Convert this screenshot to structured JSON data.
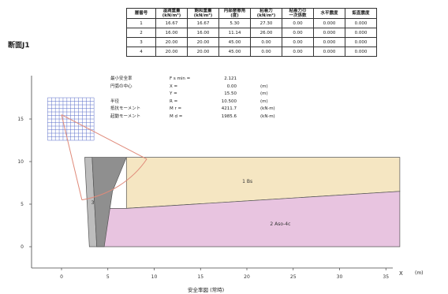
{
  "section_label": "断面J1",
  "table": {
    "headers": [
      "層番号",
      "湿潤重量\n(kN/m³)",
      "飽和重量\n(kN/m³)",
      "内部摩擦角\n(度)",
      "粘着力\n(kN/m²)",
      "粘着力の\n一次係数",
      "水平震度",
      "鉛直震度"
    ],
    "rows": [
      [
        "1",
        "16.67",
        "16.67",
        "5.30",
        "27.30",
        "0.00",
        "0.000",
        "0.000"
      ],
      [
        "2",
        "16.00",
        "16.00",
        "11.14",
        "26.00",
        "0.00",
        "0.000",
        "0.000"
      ],
      [
        "3",
        "20.00",
        "20.00",
        "45.00",
        "0.00",
        "0.00",
        "0.000",
        "0.000"
      ],
      [
        "4",
        "20.00",
        "20.00",
        "45.00",
        "0.00",
        "0.00",
        "0.000",
        "0.000"
      ]
    ]
  },
  "results": [
    {
      "label": "最小安全率",
      "sym": "F s min =",
      "value": "2.121",
      "unit": ""
    },
    {
      "label": "円弧の中心",
      "sym": "X =",
      "value": "0.00",
      "unit": "(m)"
    },
    {
      "label": "",
      "sym": "Y =",
      "value": "15.50",
      "unit": "(m)"
    },
    {
      "label": "半径",
      "sym": "R =",
      "value": "10.500",
      "unit": "(m)"
    },
    {
      "label": "抵抗モーメント",
      "sym": "M r =",
      "value": "4211.7",
      "unit": "(kN·m)"
    },
    {
      "label": "起動モーメント",
      "sym": "M d =",
      "value": "1985.6",
      "unit": "(kN·m)"
    }
  ],
  "chart_data": {
    "type": "diagram",
    "x_ticks": [
      0,
      5,
      10,
      15,
      20,
      25,
      30,
      35
    ],
    "y_ticks": [
      0,
      5,
      10,
      15
    ],
    "xlim": [
      -2,
      38
    ],
    "ylim": [
      -1.5,
      20
    ],
    "layers": [
      {
        "id": "1",
        "name": "Bs",
        "color": "#f5e6c2",
        "points": [
          [
            7,
            10.5
          ],
          [
            36.5,
            10.5
          ],
          [
            36.5,
            6.5
          ],
          [
            7,
            4.5
          ]
        ]
      },
      {
        "id": "2",
        "name": "Aso-4c",
        "color": "#e8c4e0",
        "points": [
          [
            3.8,
            4.5
          ],
          [
            7,
            4.5
          ],
          [
            36.5,
            6.5
          ],
          [
            36.5,
            0
          ],
          [
            3.8,
            0
          ]
        ]
      },
      {
        "id": "3",
        "name": "",
        "color": "#bdbdbd",
        "points": [
          [
            2.5,
            10.5
          ],
          [
            3.3,
            10.5
          ],
          [
            3.8,
            0
          ],
          [
            3.0,
            0
          ]
        ]
      },
      {
        "id": "4",
        "name": "",
        "color": "#8f8f8f",
        "points": [
          [
            3.3,
            10.5
          ],
          [
            7,
            10.5
          ],
          [
            5.5,
            6.5
          ],
          [
            4.6,
            0
          ],
          [
            3.8,
            0
          ]
        ]
      }
    ],
    "layer_label_points": [
      [
        19.5,
        7.5
      ],
      [
        22.5,
        2.5
      ],
      [
        3.2,
        5
      ]
    ],
    "slip_circle": {
      "cx": 0,
      "cy": 15.5,
      "r": 10.5
    },
    "search_grid": {
      "x0": -1.5,
      "x1": 3.5,
      "y0": 12.5,
      "y1": 17.5,
      "nx": 12,
      "ny": 12
    },
    "xlabel": "X",
    "xunit": "(m)"
  },
  "caption": "安全率図 (常時)"
}
